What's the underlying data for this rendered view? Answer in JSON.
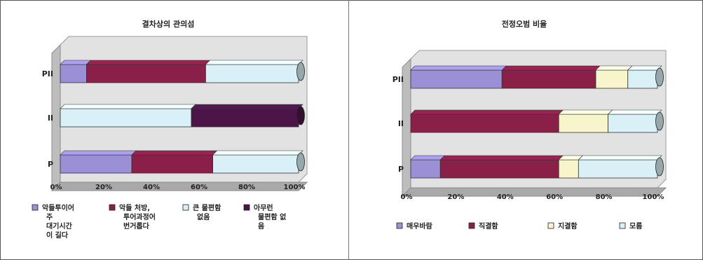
{
  "chart_data": [
    {
      "type": "bar",
      "stacked": true,
      "orientation": "horizontal",
      "title": "결차상의 관의섬",
      "categories": [
        "PII",
        "II",
        "P"
      ],
      "x_ticks": [
        "0%",
        "20%",
        "40%",
        "60%",
        "80%",
        "100%"
      ],
      "xlim": [
        0,
        100
      ],
      "series": [
        {
          "name": "악들투이어 주 대기시간 이 길다",
          "color": "#9b8fd6",
          "values": [
            11,
            0,
            30
          ]
        },
        {
          "name": "약들 처방, 투어과정어 번거롭다",
          "color": "#8a1f48",
          "values": [
            50,
            0,
            34
          ]
        },
        {
          "name": "큰 물편함 없음",
          "color": "#d8f0f6",
          "values": [
            39,
            55,
            36
          ]
        },
        {
          "name": "아무런 물편함 없 음",
          "color": "#4a1648",
          "values": [
            0,
            45,
            0
          ]
        }
      ],
      "legend": "bottom"
    },
    {
      "type": "bar",
      "stacked": true,
      "orientation": "horizontal",
      "title": "전정오범 비율",
      "categories": [
        "PII",
        "II",
        "P"
      ],
      "x_ticks": [
        "0%",
        "20%",
        "40%",
        "60%",
        "80%",
        "100%"
      ],
      "xlim": [
        0,
        100
      ],
      "series": [
        {
          "name": "매우바람",
          "color": "#9b8fd6",
          "values": [
            37,
            0,
            12
          ]
        },
        {
          "name": "직결함",
          "color": "#8a1f48",
          "values": [
            38,
            60,
            48
          ]
        },
        {
          "name": "지결함",
          "color": "#f8f4cc",
          "values": [
            13,
            20,
            8
          ]
        },
        {
          "name": "모름",
          "color": "#d8f0f6",
          "values": [
            12,
            20,
            32
          ]
        }
      ],
      "legend": "bottom"
    }
  ]
}
